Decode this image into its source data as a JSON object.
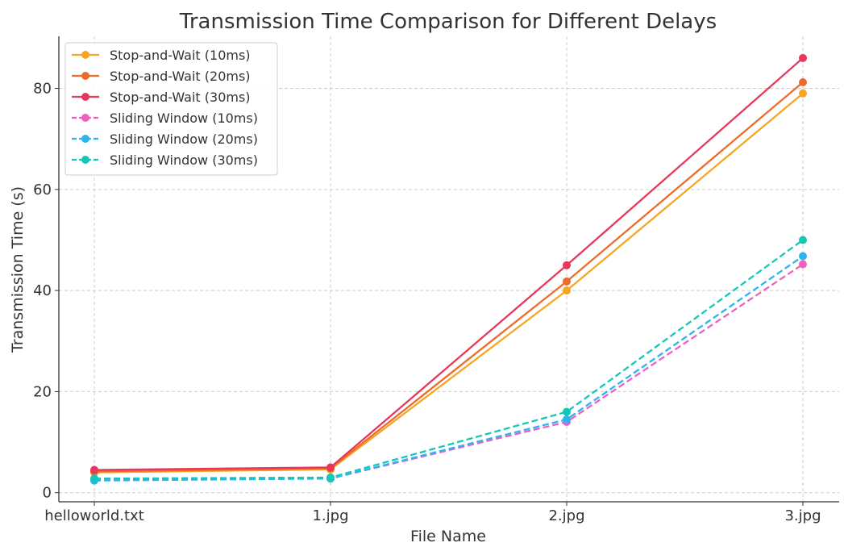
{
  "chart_data": {
    "type": "line",
    "title": "Transmission Time Comparison for Different Delays",
    "xlabel": "File Name",
    "ylabel": "Transmission Time (s)",
    "categories": [
      "helloworld.txt",
      "1.jpg",
      "2.jpg",
      "3.jpg"
    ],
    "ylim": [
      -1.8,
      90.3
    ],
    "yticks": [
      0,
      20,
      40,
      60,
      80
    ],
    "grid": true,
    "legend_position": "top-left",
    "series": [
      {
        "name": "Stop-and-Wait (10ms)",
        "color": "#f5a623",
        "dash": "solid",
        "values": [
          4.0,
          4.6,
          40.0,
          79.0
        ]
      },
      {
        "name": "Stop-and-Wait (20ms)",
        "color": "#ee6c2b",
        "dash": "solid",
        "values": [
          4.2,
          4.8,
          41.8,
          81.2
        ]
      },
      {
        "name": "Stop-and-Wait (30ms)",
        "color": "#e8375a",
        "dash": "solid",
        "values": [
          4.5,
          5.0,
          45.0,
          86.0
        ]
      },
      {
        "name": "Sliding Window (10ms)",
        "color": "#f060c0",
        "dash": "dashed",
        "values": [
          2.5,
          2.8,
          14.0,
          45.2
        ]
      },
      {
        "name": "Sliding Window (20ms)",
        "color": "#2bb5f0",
        "dash": "dashed",
        "values": [
          2.4,
          2.8,
          14.5,
          46.8
        ]
      },
      {
        "name": "Sliding Window (30ms)",
        "color": "#12c9b8",
        "dash": "dashed",
        "values": [
          2.8,
          3.0,
          16.0,
          50.0
        ]
      }
    ]
  }
}
